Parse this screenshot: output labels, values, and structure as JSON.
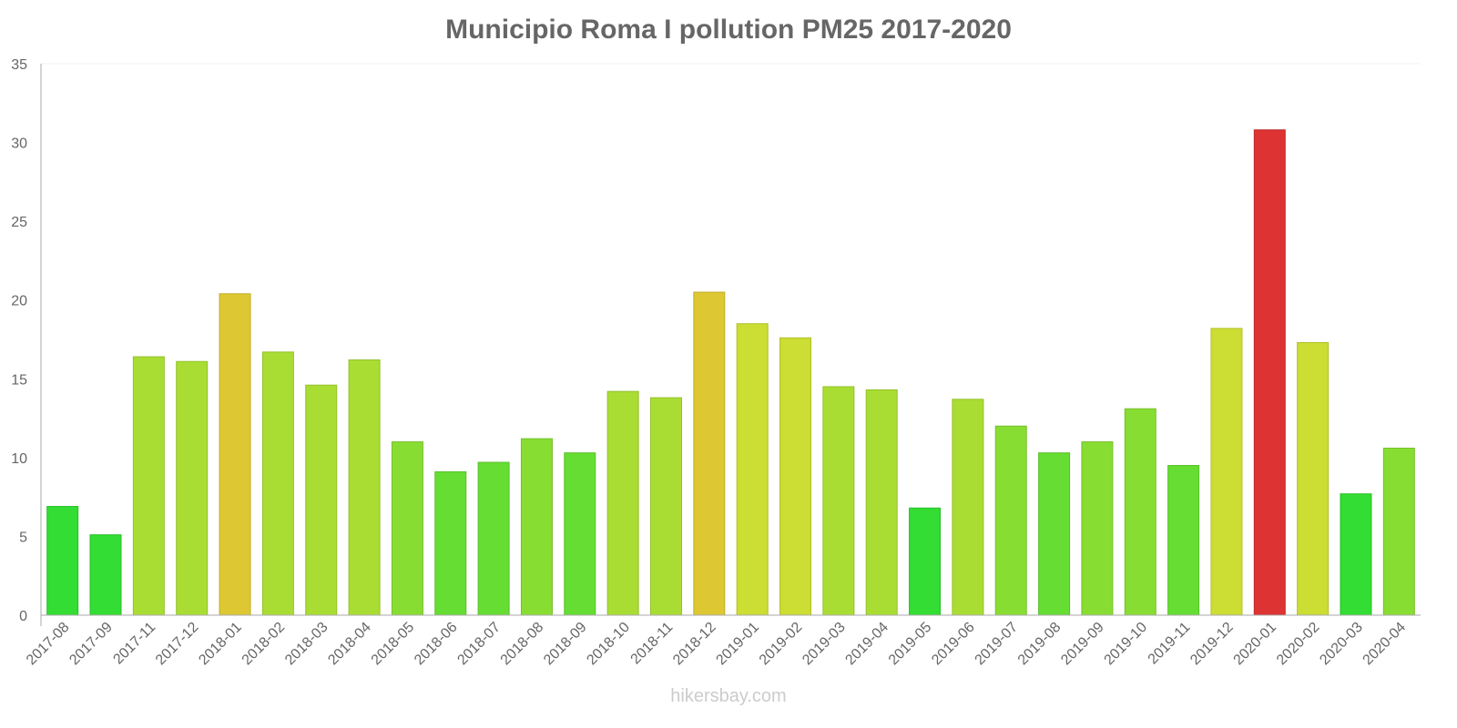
{
  "chart_data": {
    "type": "bar",
    "title": "Municipio Roma I pollution PM25 2017-2020",
    "xlabel": "",
    "ylabel": "",
    "ylim": [
      0,
      35
    ],
    "yticks": [
      "0",
      "5",
      "10",
      "15",
      "20",
      "25",
      "30",
      "35"
    ],
    "categories": [
      "2017-08",
      "2017-09",
      "2017-11",
      "2017-12",
      "2018-01",
      "2018-02",
      "2018-03",
      "2018-04",
      "2018-05",
      "2018-06",
      "2018-07",
      "2018-08",
      "2018-09",
      "2018-10",
      "2018-11",
      "2018-12",
      "2019-01",
      "2019-02",
      "2019-03",
      "2019-04",
      "2019-05",
      "2019-06",
      "2019-07",
      "2019-08",
      "2019-09",
      "2019-10",
      "2019-11",
      "2019-12",
      "2020-01",
      "2020-02",
      "2020-03",
      "2020-04"
    ],
    "values": [
      6.9,
      5.1,
      16.4,
      16.1,
      20.4,
      16.7,
      14.6,
      16.2,
      11.0,
      9.1,
      9.7,
      11.2,
      10.3,
      14.2,
      13.8,
      20.5,
      18.5,
      17.6,
      14.5,
      14.3,
      6.8,
      13.7,
      12.0,
      10.3,
      11.0,
      13.1,
      9.5,
      18.2,
      30.8,
      17.3,
      7.7,
      10.6
    ],
    "grid": false
  },
  "credit": "hikersbay.com"
}
